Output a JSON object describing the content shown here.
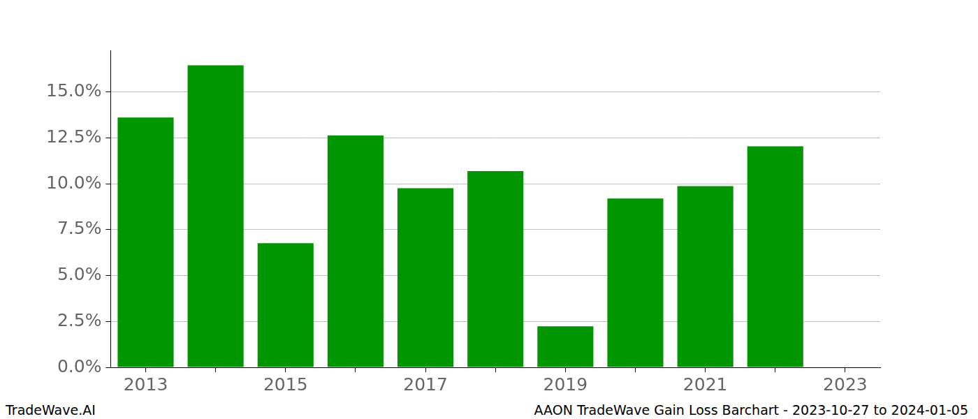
{
  "chart_data": {
    "type": "bar",
    "title": "AAON TradeWave Gain Loss Barchart - 2023-10-27 to 2024-01-05",
    "annotations": [
      "TradeWave.AI"
    ],
    "categories": [
      "2013",
      null,
      "2015",
      null,
      "2017",
      null,
      "2019",
      null,
      "2021",
      null,
      "2023"
    ],
    "values": [
      13.62,
      16.46,
      6.77,
      12.64,
      9.76,
      10.7,
      2.24,
      9.2,
      9.88,
      12.05,
      null
    ],
    "color": "#009600",
    "ylim": [
      0,
      17.28
    ],
    "yticks": [
      {
        "value": 0,
        "label": "0.0%"
      },
      {
        "value": 2.5,
        "label": "2.5%"
      },
      {
        "value": 5,
        "label": "5.0%"
      },
      {
        "value": 7.5,
        "label": "7.5%"
      },
      {
        "value": 10,
        "label": "10.0%"
      },
      {
        "value": 12.5,
        "label": "12.5%"
      },
      {
        "value": 15,
        "label": "15.0%"
      }
    ],
    "grid": true
  }
}
